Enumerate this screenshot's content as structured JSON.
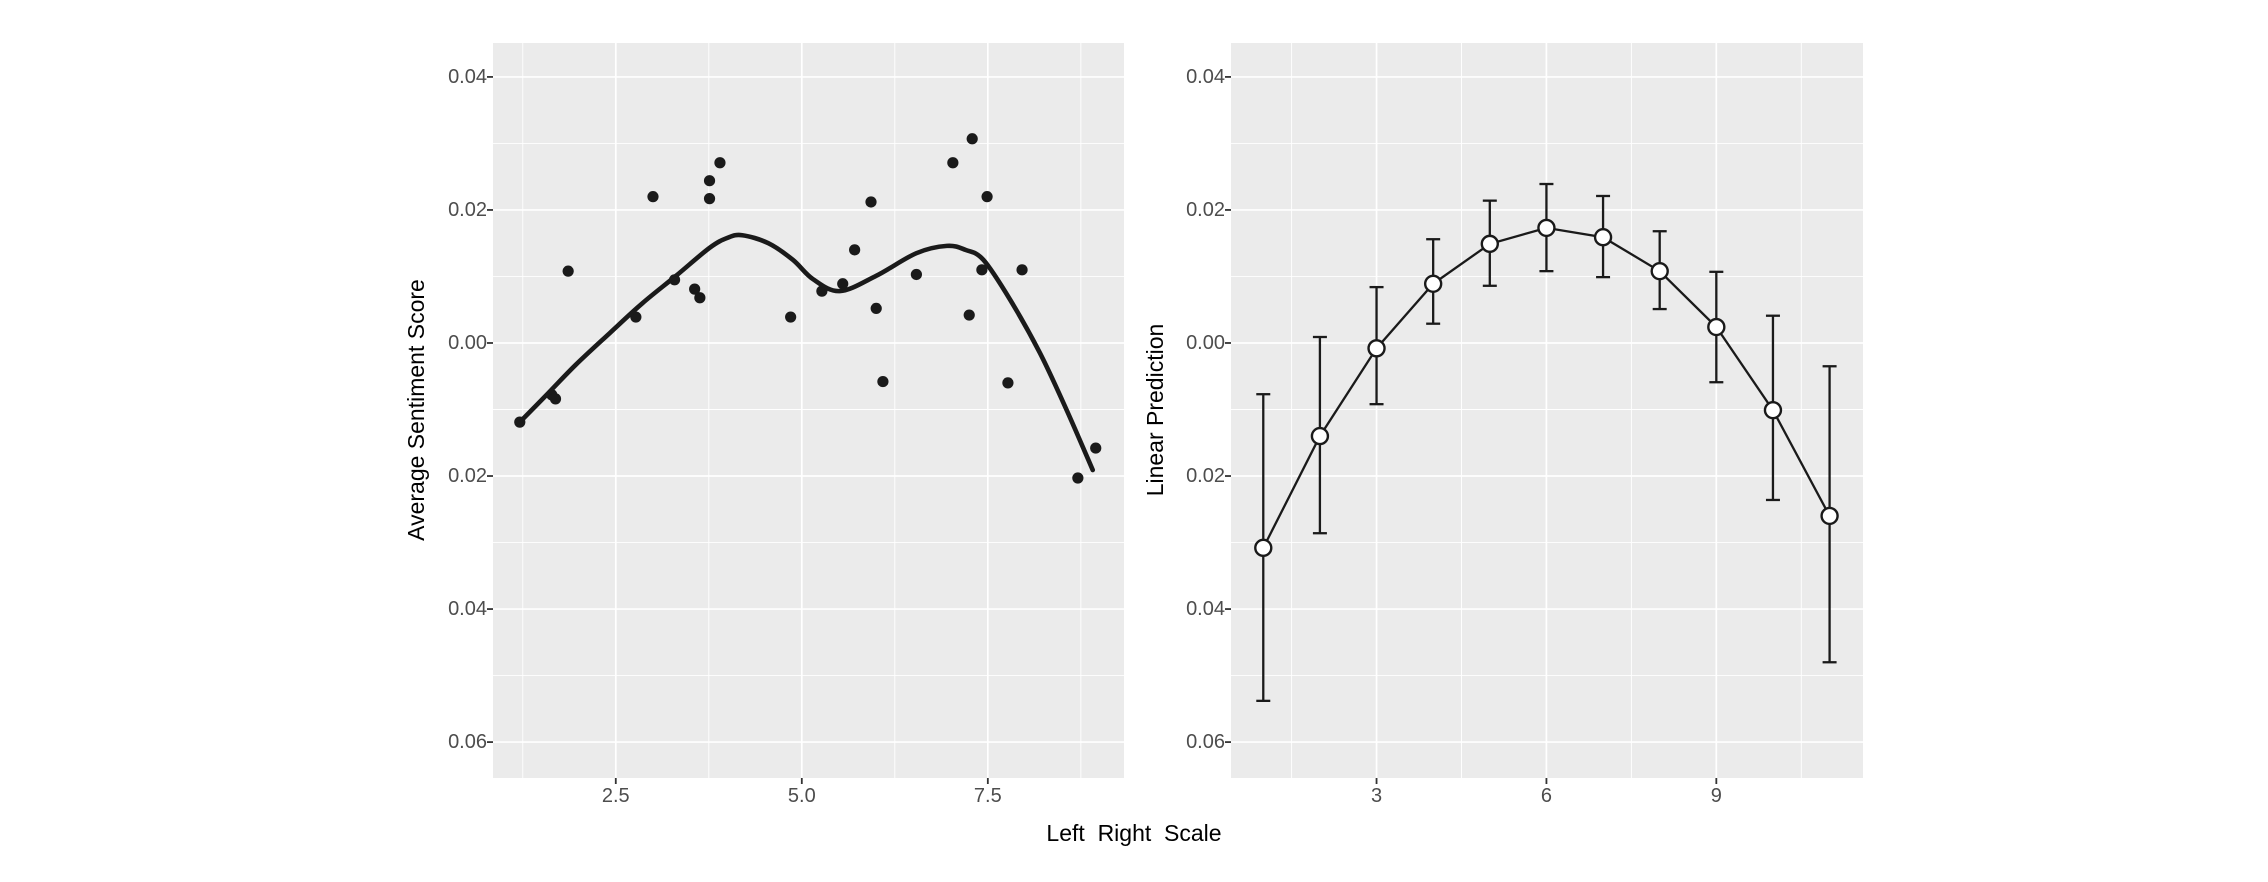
{
  "figure": {
    "background": "#FFFFFF",
    "panel_background": "#EBEBEB",
    "grid_color": "#FFFFFF",
    "data_color": "#1A1A1A",
    "marker_fill": "#FFFFFF",
    "tick_text_color": "#4D4D4D",
    "axis_title_color": "#000000"
  },
  "chart_data": [
    {
      "id": "average-sentiment-scatter",
      "type": "scatter",
      "title": "",
      "xlabel": "Left  Right  Scale",
      "ylabel": "Average Sentiment Score",
      "xlim": [
        0.85,
        9.33
      ],
      "ylim": [
        -0.0654,
        0.0451
      ],
      "grid": true,
      "x_ticks": [
        {
          "value": 2.5,
          "label": "2.5"
        },
        {
          "value": 5.0,
          "label": "5.0"
        },
        {
          "value": 7.5,
          "label": "7.5"
        }
      ],
      "y_ticks": [
        {
          "value": 0.04,
          "label": "0.04"
        },
        {
          "value": 0.02,
          "label": "0.02"
        },
        {
          "value": 0.0,
          "label": "0.00"
        },
        {
          "value": -0.02,
          "label": "0.02"
        },
        {
          "value": -0.04,
          "label": "0.04"
        },
        {
          "value": -0.06,
          "label": "0.06"
        }
      ],
      "points": [
        [
          1.21,
          -0.0119
        ],
        [
          1.64,
          -0.0078
        ],
        [
          1.69,
          -0.0084
        ],
        [
          1.86,
          0.0108
        ],
        [
          2.77,
          0.0039
        ],
        [
          3.0,
          0.022
        ],
        [
          3.29,
          0.0095
        ],
        [
          3.56,
          0.0081
        ],
        [
          3.63,
          0.0068
        ],
        [
          3.76,
          0.0244
        ],
        [
          3.76,
          0.0217
        ],
        [
          3.9,
          0.0271
        ],
        [
          4.85,
          0.0039
        ],
        [
          5.27,
          0.0078
        ],
        [
          5.55,
          0.0089
        ],
        [
          5.71,
          0.014
        ],
        [
          5.93,
          0.0212
        ],
        [
          6.0,
          0.0052
        ],
        [
          6.09,
          -0.0058
        ],
        [
          6.54,
          0.0103
        ],
        [
          7.03,
          0.0271
        ],
        [
          7.25,
          0.0042
        ],
        [
          7.29,
          0.0307
        ],
        [
          7.42,
          0.011
        ],
        [
          7.49,
          0.022
        ],
        [
          7.77,
          -0.006
        ],
        [
          7.96,
          0.011
        ],
        [
          8.71,
          -0.0203
        ],
        [
          8.95,
          -0.0158
        ]
      ],
      "smooth_line": [
        [
          1.21,
          -0.0119
        ],
        [
          1.57,
          -0.0078
        ],
        [
          1.96,
          -0.0033
        ],
        [
          2.42,
          0.0015
        ],
        [
          2.86,
          0.006
        ],
        [
          3.31,
          0.0101
        ],
        [
          3.76,
          0.0143
        ],
        [
          4.0,
          0.0158
        ],
        [
          4.2,
          0.0162
        ],
        [
          4.55,
          0.015
        ],
        [
          4.88,
          0.0125
        ],
        [
          5.15,
          0.0096
        ],
        [
          5.51,
          0.0078
        ],
        [
          6.0,
          0.0101
        ],
        [
          6.54,
          0.0135
        ],
        [
          6.95,
          0.0146
        ],
        [
          7.2,
          0.014
        ],
        [
          7.44,
          0.0125
        ],
        [
          7.8,
          0.0065
        ],
        [
          8.2,
          -0.0015
        ],
        [
          8.56,
          -0.0101
        ],
        [
          8.91,
          -0.0191
        ]
      ]
    },
    {
      "id": "linear-prediction",
      "type": "line",
      "title": "",
      "xlabel": "Left  Right  Scale",
      "ylabel": "Linear Prediction",
      "xlim": [
        0.43,
        11.59
      ],
      "ylim": [
        -0.0654,
        0.0451
      ],
      "grid": true,
      "x_ticks": [
        {
          "value": 3,
          "label": "3"
        },
        {
          "value": 6,
          "label": "6"
        },
        {
          "value": 9,
          "label": "9"
        }
      ],
      "y_ticks": [
        {
          "value": 0.04,
          "label": "0.04"
        },
        {
          "value": 0.02,
          "label": "0.02"
        },
        {
          "value": 0.0,
          "label": "0.00"
        },
        {
          "value": -0.02,
          "label": "0.02"
        },
        {
          "value": -0.04,
          "label": "0.04"
        },
        {
          "value": -0.06,
          "label": "0.06"
        }
      ],
      "series": [
        {
          "name": "linear-prediction",
          "x": [
            1,
            2,
            3,
            4,
            5,
            6,
            7,
            8,
            9,
            10,
            11
          ],
          "y": [
            -0.0308,
            -0.014,
            -0.0008,
            0.0089,
            0.0149,
            0.0173,
            0.0159,
            0.0108,
            0.0024,
            -0.0101,
            -0.026
          ],
          "ci_low": [
            -0.0538,
            -0.0286,
            -0.0092,
            0.0029,
            0.0086,
            0.0108,
            0.0099,
            0.0051,
            -0.0059,
            -0.0236,
            -0.048
          ],
          "ci_high": [
            -0.0077,
            0.0009,
            0.0084,
            0.0156,
            0.0214,
            0.0239,
            0.0221,
            0.0168,
            0.0107,
            0.0041,
            -0.0035
          ]
        }
      ]
    }
  ]
}
